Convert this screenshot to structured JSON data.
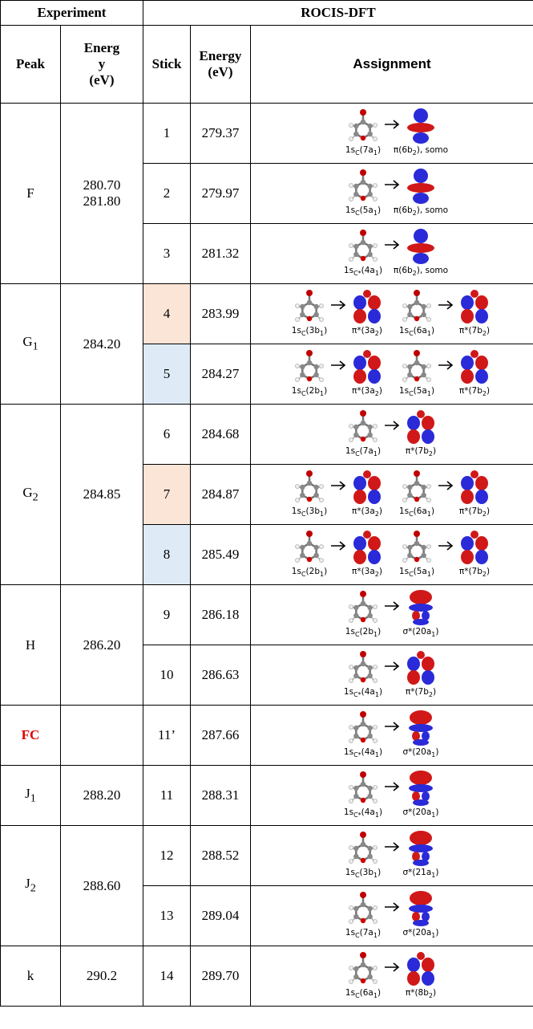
{
  "header": {
    "experiment": "Experiment",
    "rocis_dft": "ROCIS-DFT",
    "columns": [
      [
        "Peak"
      ],
      [
        "Energ",
        "y",
        "(eV)"
      ],
      [
        "Stick"
      ],
      [
        "Energy",
        "(eV)"
      ],
      [
        "Assignment"
      ]
    ]
  },
  "groups": [
    {
      "peak": [
        "F"
      ],
      "energy": [
        "280.70",
        "281.80"
      ],
      "rows": [
        {
          "stick": "1",
          "energy": "279.37",
          "assignments": [
            {
              "from": [
                "1s",
                "C",
                "(7a",
                "1",
                ")"
              ],
              "to": [
                "π(6b",
                "2",
                "), somo"
              ]
            }
          ]
        },
        {
          "stick": "2",
          "energy": "279.97",
          "assignments": [
            {
              "from": [
                "1s",
                "C",
                "(5a",
                "1",
                ")"
              ],
              "to": [
                "π(6b",
                "2",
                "), somo"
              ]
            }
          ]
        },
        {
          "stick": "3",
          "energy": "281.32",
          "assignments": [
            {
              "from": [
                "1s",
                "C*",
                "(4a",
                "1",
                ")"
              ],
              "to": [
                "π(6b",
                "2",
                "), somo"
              ]
            }
          ]
        }
      ]
    },
    {
      "peak": [
        "G",
        "1"
      ],
      "energy": [
        "284.20"
      ],
      "rows": [
        {
          "stick": "4",
          "energy": "283.99",
          "highlight": "#fbe5d6",
          "assignments": [
            {
              "from": [
                "1s",
                "C",
                "(3b",
                "1",
                ")"
              ],
              "to": [
                "π*(3a",
                "2",
                ")"
              ]
            },
            {
              "from": [
                "1s",
                "C",
                "(6a",
                "1",
                ")"
              ],
              "to": [
                "π*(7b",
                "2",
                ")"
              ]
            }
          ]
        },
        {
          "stick": "5",
          "energy": "284.27",
          "highlight": "#deebf7",
          "assignments": [
            {
              "from": [
                "1s",
                "C",
                "(2b",
                "1",
                ")"
              ],
              "to": [
                "π*(3a",
                "2",
                ")"
              ]
            },
            {
              "from": [
                "1s",
                "C",
                "(5a",
                "1",
                ")"
              ],
              "to": [
                "π*(7b",
                "2",
                ")"
              ]
            }
          ]
        }
      ]
    },
    {
      "peak": [
        "G",
        "2"
      ],
      "energy": [
        "284.85"
      ],
      "rows": [
        {
          "stick": "6",
          "energy": "284.68",
          "assignments": [
            {
              "from": [
                "1s",
                "C",
                "(7a",
                "1",
                ")"
              ],
              "to": [
                "π*(7b",
                "2",
                ")"
              ]
            }
          ]
        },
        {
          "stick": "7",
          "energy": "284.87",
          "highlight": "#fbe5d6",
          "assignments": [
            {
              "from": [
                "1s",
                "C",
                "(3b",
                "1",
                ")"
              ],
              "to": [
                "π*(3a",
                "2",
                ")"
              ]
            },
            {
              "from": [
                "1s",
                "C",
                "(6a",
                "1",
                ")"
              ],
              "to": [
                "π*(7b",
                "2",
                ")"
              ]
            }
          ]
        },
        {
          "stick": "8",
          "energy": "285.49",
          "highlight": "#deebf7",
          "assignments": [
            {
              "from": [
                "1s",
                "C",
                "(2b",
                "1",
                ")"
              ],
              "to": [
                "π*(3a",
                "2",
                ")"
              ]
            },
            {
              "from": [
                "1s",
                "C",
                "(5a",
                "1",
                ")"
              ],
              "to": [
                "π*(7b",
                "2",
                ")"
              ]
            }
          ]
        }
      ]
    },
    {
      "peak": [
        "H"
      ],
      "energy": [
        "286.20"
      ],
      "rows": [
        {
          "stick": "9",
          "energy": "286.18",
          "assignments": [
            {
              "from": [
                "1s",
                "C",
                "(2b",
                "1",
                ")"
              ],
              "to": [
                "σ*(20a",
                "1",
                ")"
              ]
            }
          ]
        },
        {
          "stick": "10",
          "energy": "286.63",
          "assignments": [
            {
              "from": [
                "1s",
                "C*",
                "(4a",
                "1",
                ")"
              ],
              "to": [
                "π*(7b",
                "2",
                ")"
              ]
            }
          ]
        }
      ]
    },
    {
      "peak": [
        "FC"
      ],
      "color": "#e00000",
      "rows": [
        {
          "stick": "11’",
          "energy": "287.66",
          "assignments": [
            {
              "from": [
                "1s",
                "C*",
                "(4a",
                "1",
                ")"
              ],
              "to": [
                "σ*(20a",
                "1",
                ")"
              ]
            }
          ]
        }
      ]
    },
    {
      "peak": [
        "J",
        "1"
      ],
      "energy": [
        "288.20"
      ],
      "rows": [
        {
          "stick": "11",
          "energy": "288.31",
          "assignments": [
            {
              "from": [
                "1s",
                "C*",
                "(4a",
                "1",
                ")"
              ],
              "to": [
                "σ*(20a",
                "1",
                ")"
              ]
            }
          ]
        }
      ]
    },
    {
      "peak": [
        "J",
        "2"
      ],
      "energy": [
        "288.60"
      ],
      "rows": [
        {
          "stick": "12",
          "energy": "288.52",
          "assignments": [
            {
              "from": [
                "1s",
                "C",
                "(3b",
                "1",
                ")"
              ],
              "to": [
                "σ*(21a",
                "1",
                ")"
              ]
            }
          ]
        },
        {
          "stick": "13",
          "energy": "289.04",
          "assignments": [
            {
              "from": [
                "1s",
                "C",
                "(7a",
                "1",
                ")"
              ],
              "to": [
                "σ*(20a",
                "1",
                ")"
              ]
            }
          ]
        }
      ]
    },
    {
      "peak": [
        "k"
      ],
      "energy": [
        "290.2"
      ],
      "rows": [
        {
          "stick": "14",
          "energy": "289.70",
          "assignments": [
            {
              "from": [
                "1s",
                "C",
                "(6a",
                "1",
                ")"
              ],
              "to": [
                "π*(8b",
                "2",
                ")"
              ]
            }
          ]
        }
      ]
    }
  ]
}
